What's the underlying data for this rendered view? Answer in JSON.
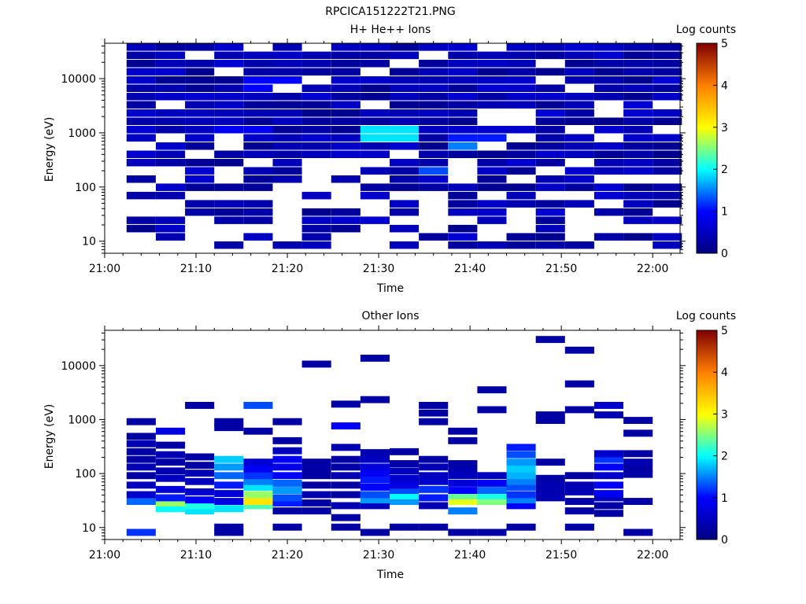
{
  "figure_title": "RPCICA151222T21.PNG",
  "colorbar_label": "Log counts",
  "colorbar_ticks": [
    "0",
    "1",
    "2",
    "3",
    "4",
    "5"
  ],
  "colorbar_stops": [
    "#00007f",
    "#0000ff",
    "#00ffff",
    "#ffff00",
    "#ff7f00",
    "#7f0000"
  ],
  "chart_data": [
    {
      "type": "heatmap",
      "title": "H+ He++ Ions",
      "xlabel": "Time",
      "ylabel": "Energy (eV)",
      "x_ticks": [
        "21:00",
        "21:10",
        "21:20",
        "21:30",
        "21:40",
        "21:50",
        "22:00"
      ],
      "y_ticks": [
        "10",
        "100",
        "1000",
        "10000"
      ],
      "y_scale": "log",
      "ylim": [
        6,
        45000
      ],
      "xlim_minutes": [
        0,
        63
      ],
      "clim": [
        0,
        5
      ],
      "time_bins_minutes": [
        2.4,
        5.6,
        8.8,
        12.0,
        15.2,
        18.4,
        21.6,
        24.8,
        28.0,
        31.2,
        34.4,
        37.6,
        40.8,
        44.0,
        47.2,
        50.4,
        53.6,
        56.8,
        60.0
      ],
      "density": 0.8,
      "base_level": 0.35,
      "vmin_energy": 7,
      "hotspots": [
        {
          "t": 29.6,
          "e": 950,
          "v": 1.9
        },
        {
          "t": 36.0,
          "e": 210,
          "v": 1.3
        },
        {
          "t": 39.2,
          "e": 620,
          "v": 1.5
        },
        {
          "t": 39.2,
          "e": 800,
          "v": 1.1
        },
        {
          "t": 16.8,
          "e": 8000,
          "v": 1.0
        },
        {
          "t": 13.6,
          "e": 1200,
          "v": 0.9
        }
      ]
    },
    {
      "type": "heatmap",
      "title": "Other Ions",
      "xlabel": "Time",
      "ylabel": "Energy (eV)",
      "x_ticks": [
        "21:00",
        "21:10",
        "21:20",
        "21:30",
        "21:40",
        "21:50",
        "22:00"
      ],
      "y_ticks": [
        "10",
        "100",
        "1000",
        "10000"
      ],
      "y_scale": "log",
      "ylim": [
        6,
        45000
      ],
      "xlim_minutes": [
        0,
        63
      ],
      "clim": [
        0,
        5
      ],
      "time_bins_minutes": [
        2.4,
        5.6,
        8.8,
        12.0,
        15.2,
        18.4,
        21.6,
        24.8,
        28.0,
        31.2,
        34.4,
        37.6,
        40.8,
        44.0,
        47.2,
        50.4,
        53.6,
        56.8,
        60.0
      ],
      "cells": [
        {
          "t": 2.4,
          "e": [
            8,
            30,
            40,
            60,
            90,
            130,
            180,
            250,
            350,
            480,
            900
          ],
          "v": [
            1.2,
            1.4,
            0.6,
            0.5,
            0.3,
            0.4,
            0.3,
            0.3,
            0.4,
            0.3,
            0.3
          ]
        },
        {
          "t": 5.6,
          "e": [
            22,
            28,
            35,
            50,
            80,
            110,
            160,
            220,
            330,
            600
          ],
          "v": [
            2.0,
            2.6,
            1.1,
            0.7,
            0.5,
            0.4,
            0.3,
            0.4,
            0.3,
            0.8
          ]
        },
        {
          "t": 8.8,
          "e": [
            20,
            25,
            32,
            45,
            70,
            100,
            140,
            200,
            1800
          ],
          "v": [
            1.9,
            2.1,
            1.0,
            0.6,
            0.5,
            0.4,
            0.3,
            0.3,
            0.3
          ]
        },
        {
          "t": 12.0,
          "e": [
            8,
            10,
            22,
            30,
            42,
            60,
            90,
            130,
            180,
            700,
            900
          ],
          "v": [
            0.3,
            0.3,
            1.9,
            0.8,
            0.7,
            1.1,
            1.4,
            1.6,
            1.8,
            0.3,
            0.3
          ]
        },
        {
          "t": 15.2,
          "e": [
            25,
            30,
            40,
            55,
            70,
            90,
            120,
            160,
            600,
            1800
          ],
          "v": [
            2.3,
            3.2,
            2.6,
            1.9,
            1.5,
            1.2,
            0.9,
            0.7,
            0.3,
            1.3
          ]
        },
        {
          "t": 18.4,
          "e": [
            10,
            20,
            28,
            35,
            48,
            65,
            90,
            130,
            180,
            260,
            400,
            900
          ],
          "v": [
            0.3,
            0.3,
            1.1,
            1.3,
            1.6,
            1.4,
            1.0,
            0.8,
            0.9,
            0.5,
            0.3,
            0.3
          ]
        },
        {
          "t": 21.6,
          "e": [
            20,
            28,
            40,
            60,
            90,
            120,
            160,
            10500
          ],
          "v": [
            0.3,
            0.3,
            0.4,
            0.3,
            0.3,
            0.3,
            0.3,
            0.3
          ]
        },
        {
          "t": 24.8,
          "e": [
            10,
            15,
            25,
            40,
            60,
            90,
            130,
            180,
            300,
            750,
            1900
          ],
          "v": [
            0.3,
            0.3,
            0.4,
            0.3,
            0.3,
            0.4,
            0.3,
            0.3,
            0.4,
            1.0,
            0.3
          ]
        },
        {
          "t": 28.0,
          "e": [
            8,
            25,
            32,
            40,
            55,
            75,
            100,
            130,
            180,
            240,
            2300,
            13500
          ],
          "v": [
            0.3,
            0.5,
            1.6,
            1.3,
            1.0,
            1.1,
            0.9,
            0.7,
            0.5,
            0.4,
            0.3,
            0.3
          ]
        },
        {
          "t": 31.2,
          "e": [
            10,
            30,
            38,
            48,
            60,
            80,
            110,
            150,
            250
          ],
          "v": [
            0.3,
            1.6,
            2.0,
            1.3,
            0.8,
            0.6,
            0.5,
            0.3,
            0.3
          ]
        },
        {
          "t": 34.4,
          "e": [
            10,
            25,
            35,
            50,
            70,
            90,
            130,
            180,
            900,
            1300,
            1800
          ],
          "v": [
            0.3,
            0.4,
            1.1,
            1.2,
            0.6,
            0.5,
            0.4,
            0.3,
            0.3,
            0.3,
            0.3
          ]
        },
        {
          "t": 37.6,
          "e": [
            8,
            20,
            30,
            38,
            48,
            65,
            90,
            120,
            150,
            400,
            600
          ],
          "v": [
            0.3,
            1.5,
            2.9,
            2.4,
            1.0,
            0.7,
            0.5,
            0.4,
            0.3,
            0.3,
            0.3
          ]
        },
        {
          "t": 40.8,
          "e": [
            8,
            30,
            38,
            48,
            65,
            90,
            1500,
            3500
          ],
          "v": [
            0.3,
            2.5,
            2.1,
            1.4,
            0.9,
            0.5,
            0.3,
            0.3
          ]
        },
        {
          "t": 44.0,
          "e": [
            10,
            25,
            32,
            40,
            55,
            70,
            90,
            120,
            160,
            220,
            300
          ],
          "v": [
            0.3,
            1.0,
            1.5,
            1.2,
            1.3,
            1.5,
            1.7,
            1.8,
            1.6,
            1.3,
            1.1
          ]
        },
        {
          "t": 47.2,
          "e": [
            35,
            45,
            60,
            80,
            160,
            950,
            1200,
            30000
          ],
          "v": [
            0.4,
            0.4,
            0.4,
            0.3,
            0.3,
            0.3,
            0.3,
            0.3
          ]
        },
        {
          "t": 50.4,
          "e": [
            10,
            20,
            30,
            45,
            60,
            90,
            1500,
            4500,
            19000
          ],
          "v": [
            0.3,
            0.3,
            0.3,
            0.4,
            0.4,
            0.3,
            0.3,
            0.3,
            0.3
          ]
        },
        {
          "t": 53.6,
          "e": [
            18,
            25,
            35,
            42,
            60,
            90,
            130,
            180,
            230,
            1200,
            1800
          ],
          "v": [
            0.3,
            0.3,
            0.5,
            0.9,
            1.0,
            0.6,
            1.0,
            1.2,
            0.6,
            0.4,
            0.6
          ]
        },
        {
          "t": 56.8,
          "e": [
            8,
            30,
            95,
            120,
            160,
            230,
            550,
            950
          ],
          "v": [
            0.3,
            0.3,
            0.3,
            0.3,
            0.4,
            0.3,
            0.3,
            0.3
          ]
        }
      ]
    }
  ]
}
